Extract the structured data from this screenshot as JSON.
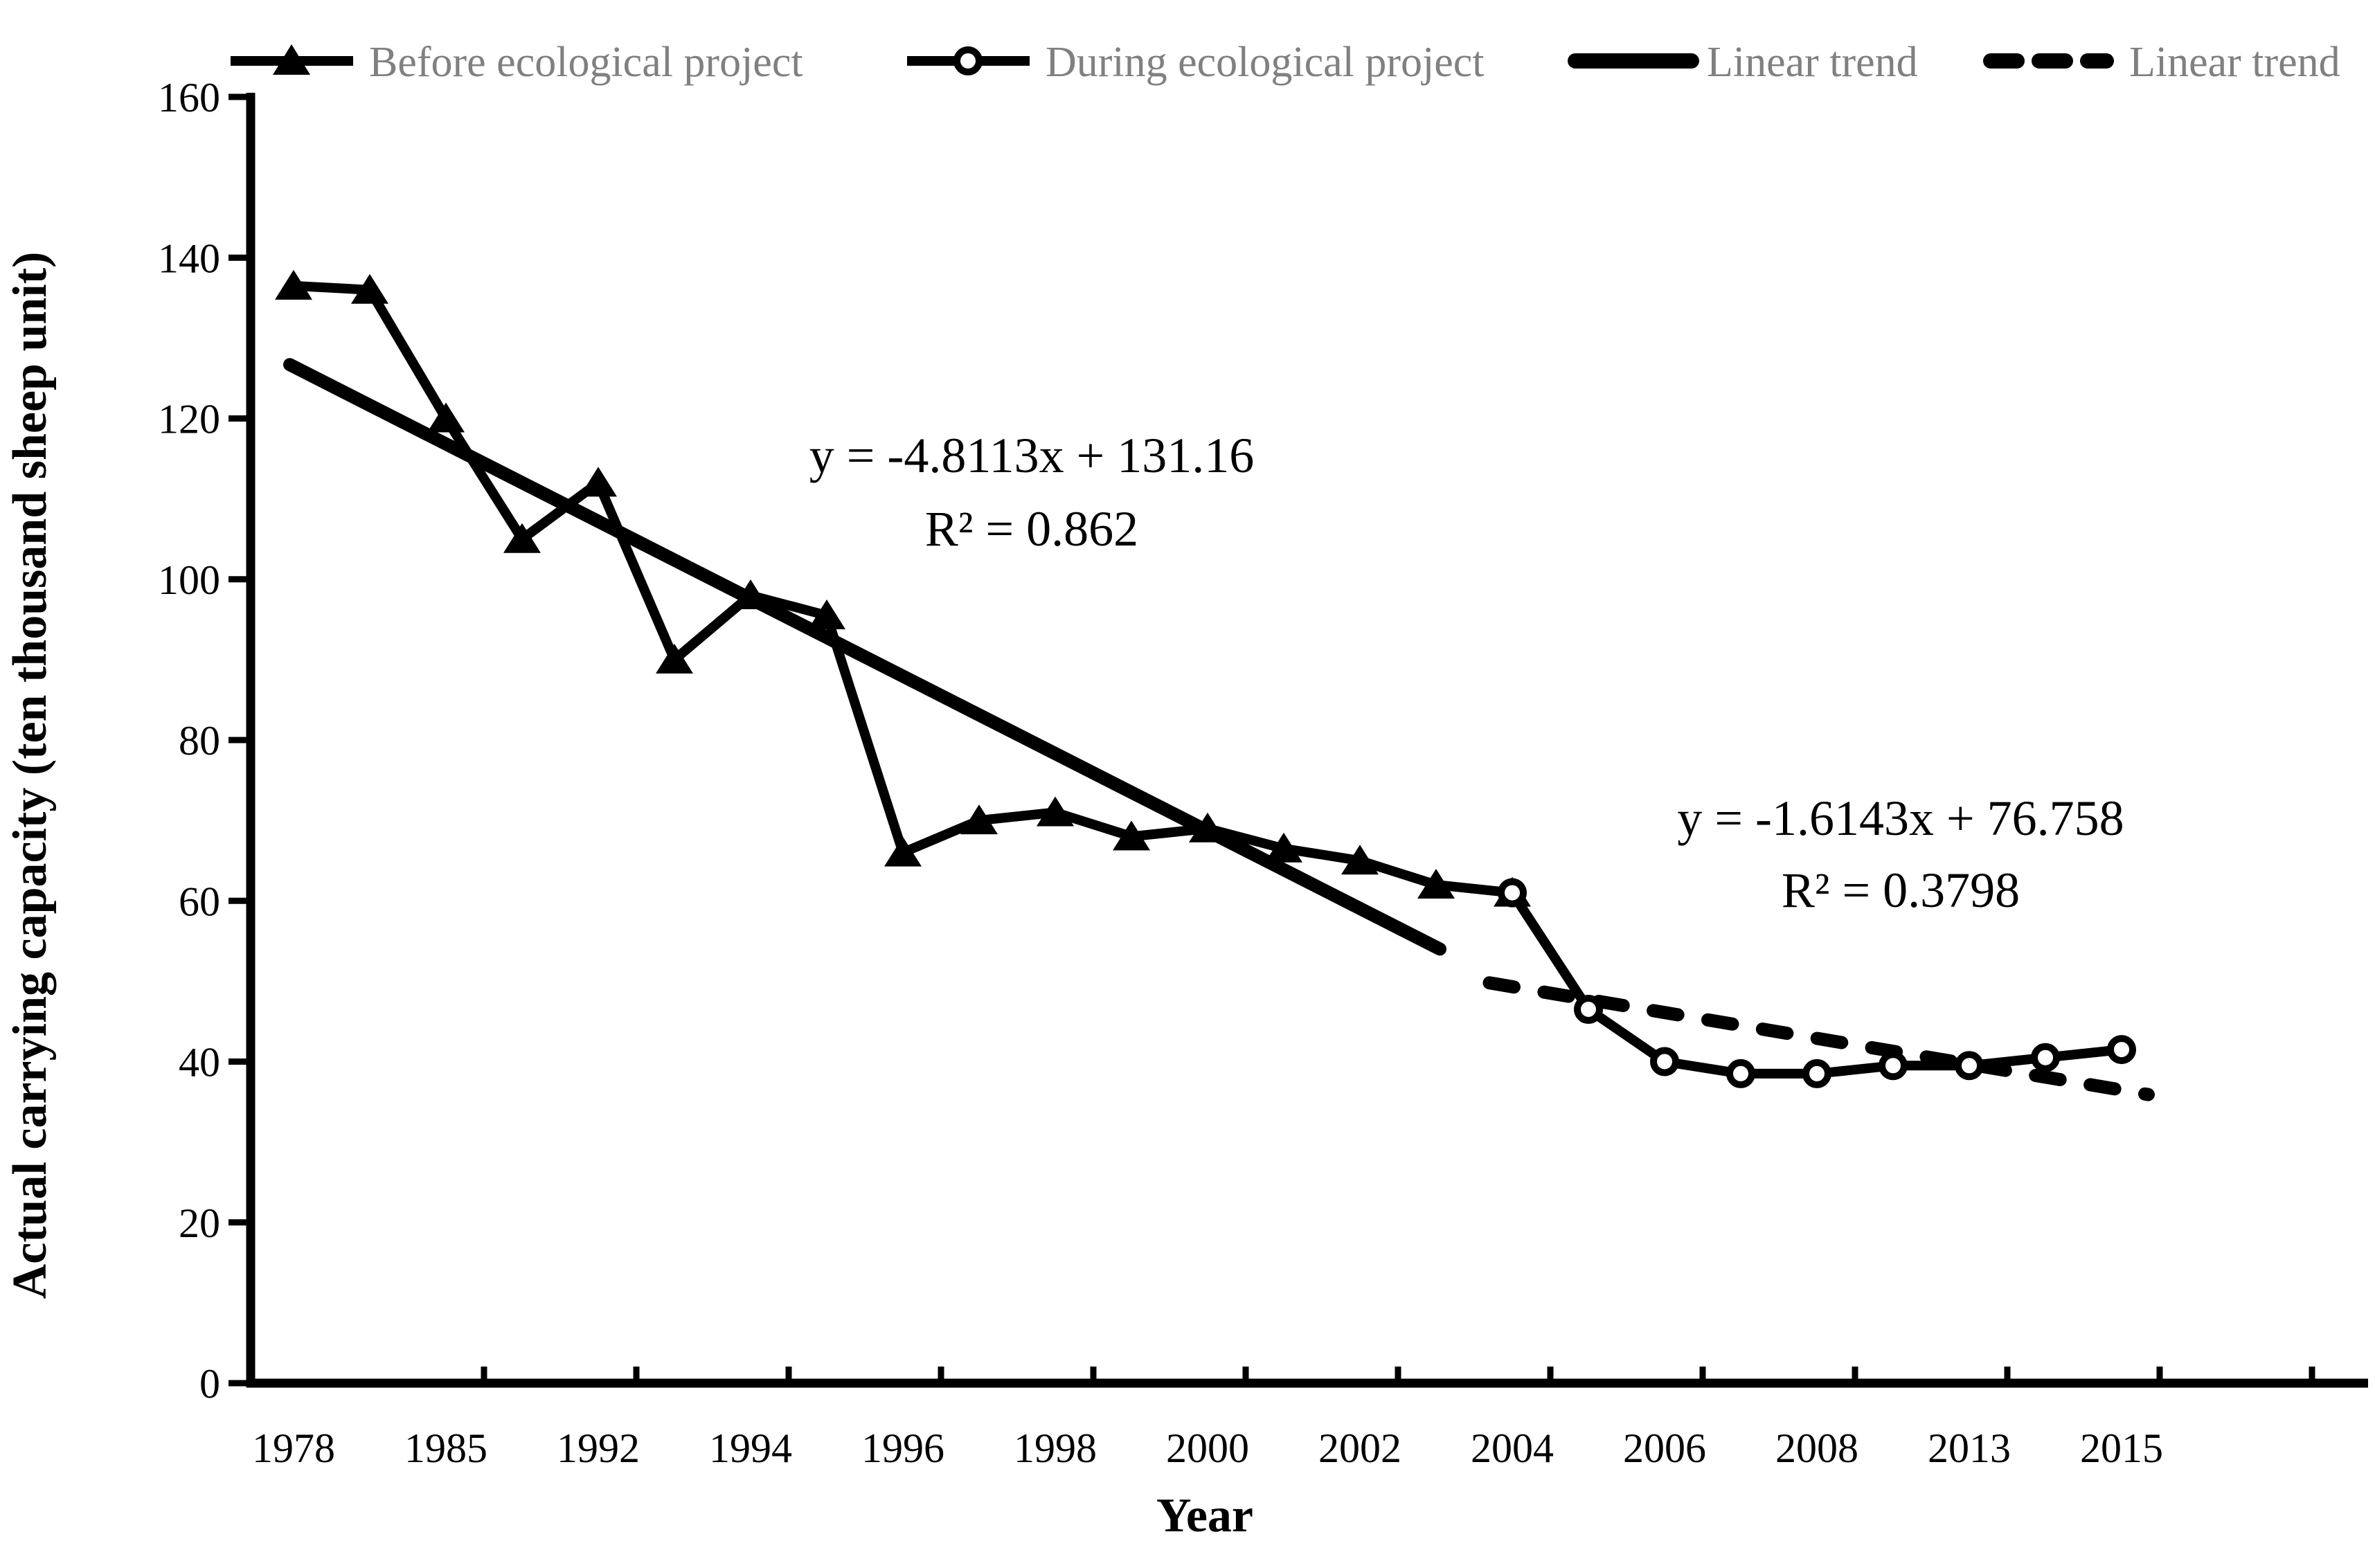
{
  "legend": {
    "text_color": "#808080",
    "items": [
      {
        "label": "Before ecological project",
        "marker": "filled-triangle-line"
      },
      {
        "label": "During ecological project",
        "marker": "open-circle-line"
      },
      {
        "label": "Linear trend",
        "marker": "thick-solid-line"
      },
      {
        "label": "Linear trend",
        "marker": "thick-dashed-line"
      }
    ]
  },
  "annotations": {
    "before_equation": "y = -4.8113x + 131.16",
    "before_r2": "R² = 0.862",
    "during_equation": "y = -1.6143x + 76.758",
    "during_r2": "R² = 0.3798"
  },
  "chart_data": {
    "type": "line",
    "title": "",
    "x_axis": {
      "title": "Year",
      "tick_labels": [
        "1978",
        "1985",
        "1992",
        "1994",
        "1996",
        "1998",
        "2000",
        "2002",
        "2004",
        "2006",
        "2008",
        "2013",
        "2015"
      ],
      "tick_label_category_positions": [
        1,
        3,
        5,
        7,
        9,
        11,
        13,
        15,
        17,
        19,
        21,
        23,
        25
      ],
      "n_categories": 25
    },
    "y_axis": {
      "title": "Actual carrying capacity (ten thousand sheep unit)",
      "ticks": [
        0,
        20,
        40,
        60,
        80,
        100,
        120,
        140,
        160
      ],
      "range": [
        0,
        160
      ]
    },
    "grid": "off",
    "legend_position": "top",
    "series": [
      {
        "name": "Before ecological project",
        "marker": "filled-triangle",
        "line": "solid",
        "category_x": [
          1,
          2,
          3,
          4,
          5,
          6,
          7,
          8,
          9,
          10,
          11,
          12,
          13,
          14,
          15,
          16,
          17
        ],
        "values": [
          136.5,
          136,
          120,
          105,
          112,
          90,
          98,
          95.5,
          66,
          70,
          71,
          68,
          69,
          66.5,
          65,
          62,
          61
        ]
      },
      {
        "name": "During ecological project",
        "marker": "open-circle",
        "line": "solid",
        "category_x": [
          17,
          18,
          19,
          20,
          21,
          22,
          23,
          24,
          25
        ],
        "values": [
          61,
          46.5,
          40,
          38.5,
          38.5,
          39.5,
          39.5,
          40.5,
          41.5
        ]
      },
      {
        "name": "Linear trend",
        "style": "solid-thick",
        "equation": "y = -4.8113x + 131.16",
        "r_squared": "R² = 0.862",
        "endpoints_category_x": [
          0.95,
          16.05
        ],
        "endpoints_values": [
          126.7,
          54.0
        ]
      },
      {
        "name": "Linear trend",
        "style": "dashed-thick",
        "equation": "y = -1.6143x + 76.758",
        "r_squared": "R² = 0.3798",
        "endpoints_category_x": [
          16.7,
          25.35
        ],
        "endpoints_values": [
          49.8,
          35.9
        ]
      }
    ]
  }
}
